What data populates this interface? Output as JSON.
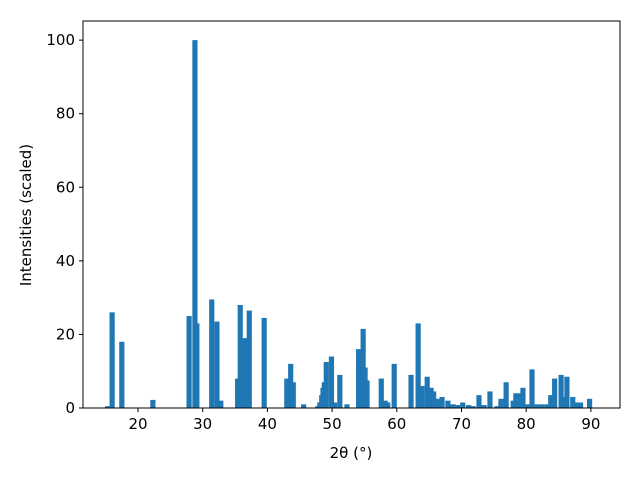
{
  "chart_data": {
    "type": "bar",
    "xlabel": "2θ (°)",
    "ylabel": "Intensities (scaled)",
    "color": "#1f77b4",
    "bar_width": 0.8,
    "x": [
      15.3,
      16.0,
      17.5,
      22.3,
      27.9,
      28.8,
      29.1,
      31.4,
      32.2,
      32.8,
      35.4,
      35.8,
      36.2,
      36.5,
      37.2,
      39.5,
      43.0,
      43.6,
      44.0,
      45.6,
      47.8,
      48.1,
      48.4,
      48.6,
      48.8,
      49.1,
      49.9,
      50.4,
      51.2,
      52.3,
      54.1,
      54.8,
      55.1,
      55.4,
      57.6,
      58.2,
      58.6,
      59.6,
      62.2,
      63.3,
      63.9,
      64.7,
      65.3,
      65.7,
      66.2,
      67.0,
      67.9,
      68.7,
      69.4,
      70.2,
      71.1,
      71.8,
      72.7,
      73.5,
      74.4,
      75.5,
      76.1,
      76.9,
      78.0,
      78.4,
      79.0,
      79.5,
      80.3,
      80.9,
      81.7,
      82.4,
      83.2,
      83.8,
      84.4,
      85.4,
      85.8,
      86.3,
      87.2,
      87.8,
      88.4,
      89.8
    ],
    "values": [
      0.5,
      26,
      18,
      2.2,
      25,
      100,
      23,
      29.5,
      23.5,
      2,
      8,
      28,
      3,
      19,
      26.5,
      24.5,
      8,
      12,
      7,
      1,
      0.5,
      1.5,
      3.5,
      5.5,
      7,
      12.5,
      14,
      1.5,
      9,
      1,
      16,
      21.5,
      11,
      7.5,
      8,
      2,
      1.5,
      12,
      9,
      23,
      6,
      8.5,
      5.5,
      4.5,
      2.5,
      3,
      2,
      1,
      0.8,
      1.5,
      0.8,
      0.5,
      3.5,
      0.8,
      4.5,
      0.5,
      2.5,
      7,
      2,
      4,
      4,
      5.5,
      1,
      10.5,
      1,
      1,
      1,
      3.5,
      8,
      9,
      3,
      8.5,
      3,
      1.5,
      1.5,
      2.5
    ],
    "xlim": [
      11.5,
      94.5
    ],
    "xticks": [
      20,
      30,
      40,
      50,
      60,
      70,
      80,
      90
    ],
    "ylim": [
      0,
      105.2
    ],
    "yticks": [
      0,
      20,
      40,
      60,
      80,
      100
    ]
  }
}
